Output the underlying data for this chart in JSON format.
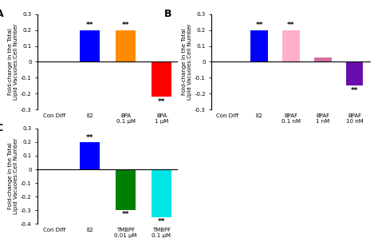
{
  "panel_A": {
    "categories": [
      "Con Diff",
      "E2",
      "BPA\n0.1 μM",
      "BPA\n1 μM"
    ],
    "values": [
      0.0,
      0.2,
      0.2,
      -0.22
    ],
    "colors": [
      "#ffffff",
      "#0000ff",
      "#ff8c00",
      "#ff0000"
    ],
    "sig": [
      false,
      true,
      true,
      true
    ],
    "ylim": [
      -0.3,
      0.3
    ],
    "yticks": [
      -0.3,
      -0.2,
      -0.1,
      0.0,
      0.1,
      0.2,
      0.3
    ],
    "label": "A"
  },
  "panel_B": {
    "categories": [
      "Con Diff",
      "E2",
      "BPAF\n0.1 nM",
      "BPAF\n1 nM",
      "BPAF\n10 nM"
    ],
    "values": [
      0.0,
      0.2,
      0.2,
      0.03,
      -0.15
    ],
    "colors": [
      "#ffffff",
      "#0000ff",
      "#ffb0c8",
      "#d070a0",
      "#6a0dad"
    ],
    "sig": [
      false,
      true,
      true,
      false,
      true
    ],
    "ylim": [
      -0.3,
      0.3
    ],
    "yticks": [
      -0.3,
      -0.2,
      -0.1,
      0.0,
      0.1,
      0.2,
      0.3
    ],
    "label": "B"
  },
  "panel_C": {
    "categories": [
      "Con Diff",
      "E2",
      "TMBPF\n0.01 μM",
      "TMBPF\n0.1 μM"
    ],
    "values": [
      0.0,
      0.2,
      -0.3,
      -0.35
    ],
    "colors": [
      "#ffffff",
      "#0000ff",
      "#008000",
      "#00e5e5"
    ],
    "sig": [
      false,
      true,
      true,
      true
    ],
    "ylim": [
      -0.4,
      0.3
    ],
    "yticks": [
      -0.4,
      -0.3,
      -0.2,
      -0.1,
      0.0,
      0.1,
      0.2,
      0.3
    ],
    "label": "C"
  },
  "ylabel": "Fold-change in the Total\nLipid Vacuoles:Cell Number",
  "bar_width": 0.55,
  "fontsize_tick": 5.0,
  "fontsize_label": 5.0,
  "fontsize_sig": 6.5,
  "fontsize_panel_label": 9
}
